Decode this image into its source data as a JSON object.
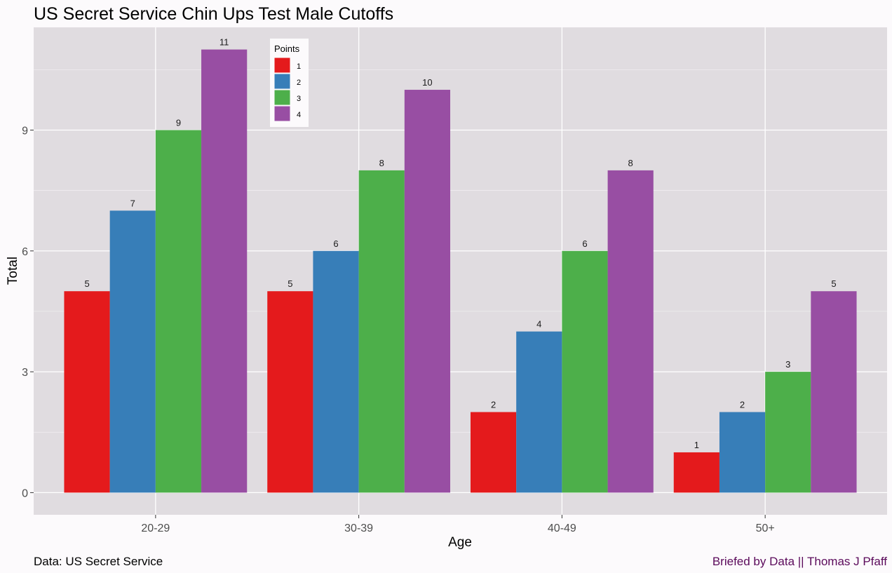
{
  "chart_data": {
    "type": "bar",
    "title": "US Secret Service Chin Ups Test Male Cutoffs",
    "xlabel": "Age",
    "ylabel": "Total",
    "categories": [
      "20-29",
      "30-39",
      "40-49",
      "50+"
    ],
    "series": [
      {
        "name": "1",
        "values": [
          5,
          5,
          2,
          1
        ],
        "color": "#e41a1c"
      },
      {
        "name": "2",
        "values": [
          7,
          6,
          4,
          2
        ],
        "color": "#377eb8"
      },
      {
        "name": "3",
        "values": [
          9,
          8,
          6,
          3
        ],
        "color": "#4daf4a"
      },
      {
        "name": "4",
        "values": [
          11,
          10,
          8,
          5
        ],
        "color": "#984ea3"
      }
    ],
    "ylim": [
      -0.55,
      11.55
    ],
    "yticks": [
      0,
      3,
      6,
      9
    ],
    "grid": true,
    "legend": {
      "title": "Points",
      "placement": "top-inside"
    },
    "panel_color": "#e0dce0",
    "caption_left": "Data: US Secret Service",
    "caption_right": "Briefed by Data || Thomas J Pfaff",
    "caption_right_color": "#5b0a5b"
  }
}
